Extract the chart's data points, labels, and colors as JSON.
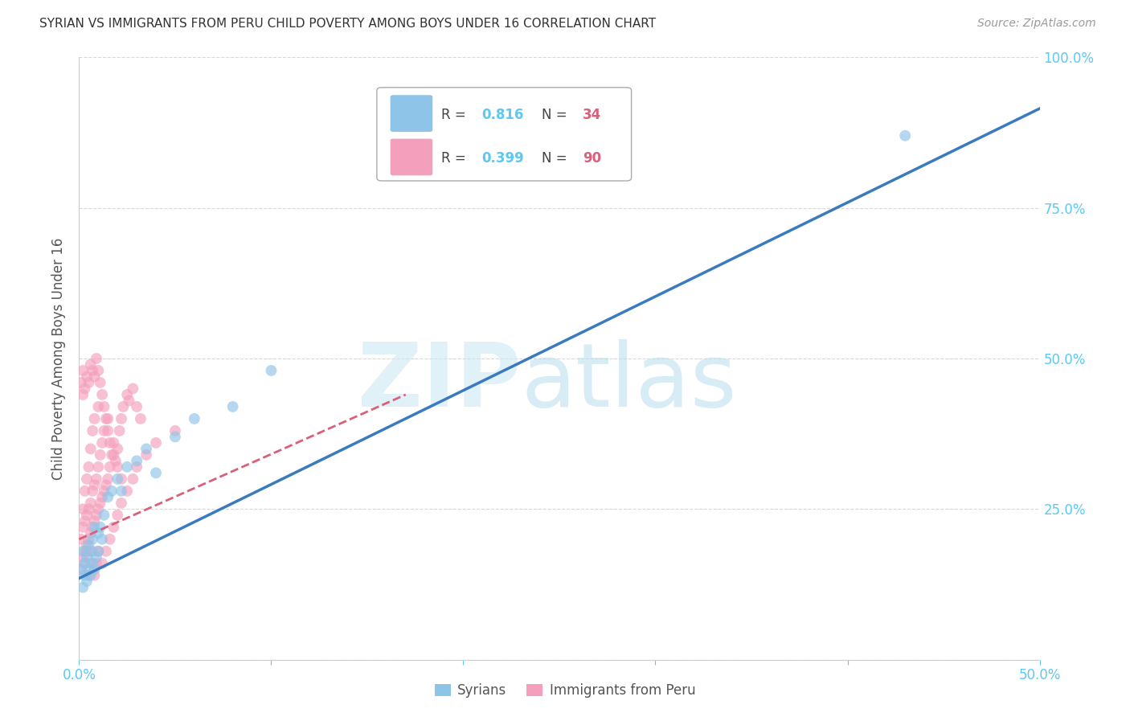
{
  "title": "SYRIAN VS IMMIGRANTS FROM PERU CHILD POVERTY AMONG BOYS UNDER 16 CORRELATION CHART",
  "source": "Source: ZipAtlas.com",
  "ylabel": "Child Poverty Among Boys Under 16",
  "xlim": [
    0.0,
    0.5
  ],
  "ylim": [
    0.0,
    1.0
  ],
  "color_syrian": "#8ec4e8",
  "color_peru": "#f4a0bc",
  "color_syrian_line": "#3a7bbf",
  "color_peru_line": "#d9607a",
  "color_axis": "#5bc8f5",
  "grid_color": "#d8d8d8",
  "syrian_x": [
    0.001,
    0.002,
    0.002,
    0.003,
    0.003,
    0.004,
    0.004,
    0.005,
    0.005,
    0.006,
    0.006,
    0.007,
    0.007,
    0.008,
    0.008,
    0.009,
    0.01,
    0.01,
    0.011,
    0.012,
    0.013,
    0.015,
    0.017,
    0.02,
    0.022,
    0.025,
    0.03,
    0.035,
    0.04,
    0.05,
    0.06,
    0.08,
    0.1,
    0.43
  ],
  "syrian_y": [
    0.15,
    0.12,
    0.18,
    0.14,
    0.16,
    0.13,
    0.17,
    0.15,
    0.19,
    0.14,
    0.18,
    0.16,
    0.2,
    0.15,
    0.22,
    0.17,
    0.18,
    0.21,
    0.22,
    0.2,
    0.24,
    0.27,
    0.28,
    0.3,
    0.28,
    0.32,
    0.33,
    0.35,
    0.31,
    0.37,
    0.4,
    0.42,
    0.48,
    0.87
  ],
  "peru_x": [
    0.001,
    0.001,
    0.002,
    0.002,
    0.002,
    0.003,
    0.003,
    0.003,
    0.004,
    0.004,
    0.004,
    0.005,
    0.005,
    0.005,
    0.006,
    0.006,
    0.006,
    0.007,
    0.007,
    0.007,
    0.008,
    0.008,
    0.008,
    0.009,
    0.009,
    0.01,
    0.01,
    0.01,
    0.011,
    0.011,
    0.012,
    0.012,
    0.013,
    0.013,
    0.014,
    0.015,
    0.015,
    0.016,
    0.017,
    0.018,
    0.019,
    0.02,
    0.021,
    0.022,
    0.023,
    0.025,
    0.026,
    0.028,
    0.03,
    0.032,
    0.001,
    0.002,
    0.002,
    0.003,
    0.004,
    0.005,
    0.006,
    0.007,
    0.008,
    0.009,
    0.01,
    0.011,
    0.012,
    0.013,
    0.014,
    0.015,
    0.016,
    0.018,
    0.02,
    0.022,
    0.003,
    0.004,
    0.005,
    0.006,
    0.007,
    0.008,
    0.009,
    0.01,
    0.012,
    0.014,
    0.016,
    0.018,
    0.02,
    0.022,
    0.025,
    0.028,
    0.03,
    0.035,
    0.04,
    0.05
  ],
  "peru_y": [
    0.15,
    0.2,
    0.17,
    0.22,
    0.25,
    0.18,
    0.23,
    0.28,
    0.19,
    0.24,
    0.3,
    0.2,
    0.25,
    0.32,
    0.21,
    0.26,
    0.35,
    0.22,
    0.28,
    0.38,
    0.23,
    0.29,
    0.4,
    0.24,
    0.3,
    0.25,
    0.32,
    0.42,
    0.26,
    0.34,
    0.27,
    0.36,
    0.28,
    0.38,
    0.29,
    0.3,
    0.4,
    0.32,
    0.34,
    0.36,
    0.33,
    0.35,
    0.38,
    0.4,
    0.42,
    0.44,
    0.43,
    0.45,
    0.42,
    0.4,
    0.46,
    0.44,
    0.48,
    0.45,
    0.47,
    0.46,
    0.49,
    0.48,
    0.47,
    0.5,
    0.48,
    0.46,
    0.44,
    0.42,
    0.4,
    0.38,
    0.36,
    0.34,
    0.32,
    0.3,
    0.16,
    0.18,
    0.14,
    0.16,
    0.18,
    0.14,
    0.16,
    0.18,
    0.16,
    0.18,
    0.2,
    0.22,
    0.24,
    0.26,
    0.28,
    0.3,
    0.32,
    0.34,
    0.36,
    0.38
  ],
  "syrian_line_x": [
    0.0,
    0.5
  ],
  "syrian_line_y": [
    0.135,
    0.915
  ],
  "peru_line_x": [
    0.0,
    0.17
  ],
  "peru_line_y": [
    0.2,
    0.44
  ]
}
